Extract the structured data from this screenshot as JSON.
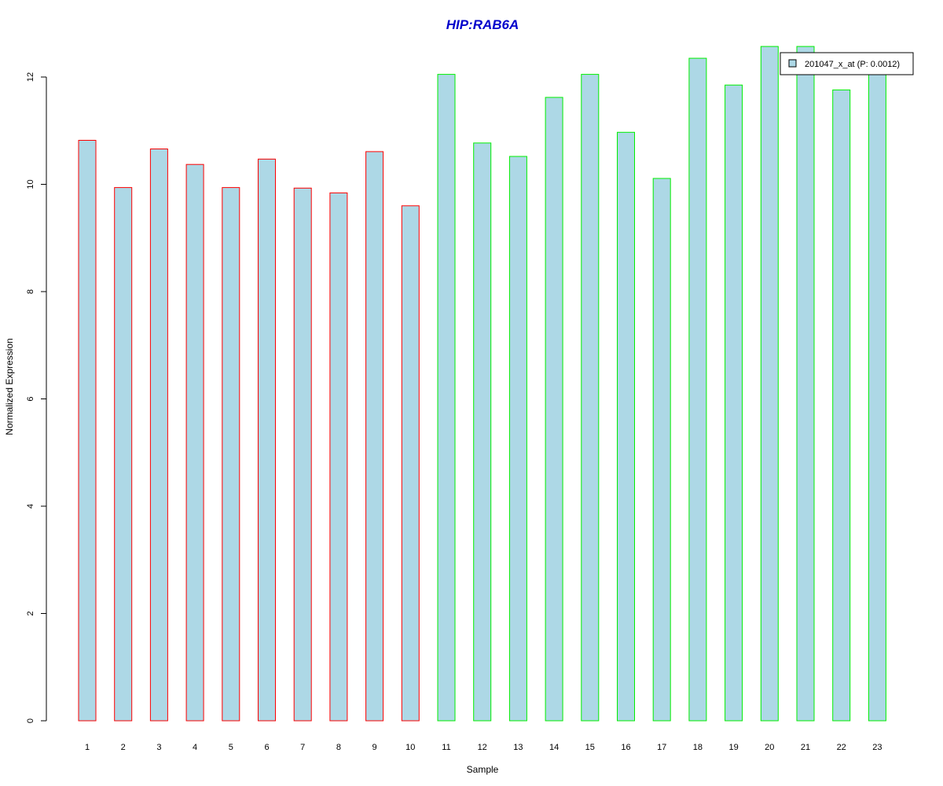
{
  "chart_data": {
    "type": "bar",
    "title": "HIP:RAB6A",
    "title_color": "#0000cc",
    "xlabel": "Sample",
    "ylabel": "Normalized Expression",
    "ylim": [
      0,
      12.6
    ],
    "yticks": [
      0,
      2,
      4,
      6,
      8,
      10,
      12
    ],
    "categories": [
      "1",
      "2",
      "3",
      "4",
      "5",
      "6",
      "7",
      "8",
      "9",
      "10",
      "11",
      "12",
      "13",
      "14",
      "15",
      "16",
      "17",
      "18",
      "19",
      "20",
      "21",
      "22",
      "23"
    ],
    "values": [
      10.82,
      9.94,
      10.66,
      10.37,
      9.94,
      10.47,
      9.93,
      9.84,
      10.61,
      9.6,
      12.05,
      10.77,
      10.52,
      11.62,
      12.05,
      10.97,
      10.11,
      12.35,
      11.85,
      12.57,
      12.57,
      11.76,
      12.1
    ],
    "fill_color": "#add8e6",
    "border_colors": [
      "#ff0000",
      "#ff0000",
      "#ff0000",
      "#ff0000",
      "#ff0000",
      "#ff0000",
      "#ff0000",
      "#ff0000",
      "#ff0000",
      "#ff0000",
      "#00ee00",
      "#00ee00",
      "#00ee00",
      "#00ee00",
      "#00ee00",
      "#00ee00",
      "#00ee00",
      "#00ee00",
      "#00ee00",
      "#00ee00",
      "#00ee00",
      "#00ee00",
      "#00ee00"
    ],
    "legend": {
      "label": "201047_x_at (P: 0.0012)",
      "placement": "top-right"
    },
    "grid": false
  }
}
